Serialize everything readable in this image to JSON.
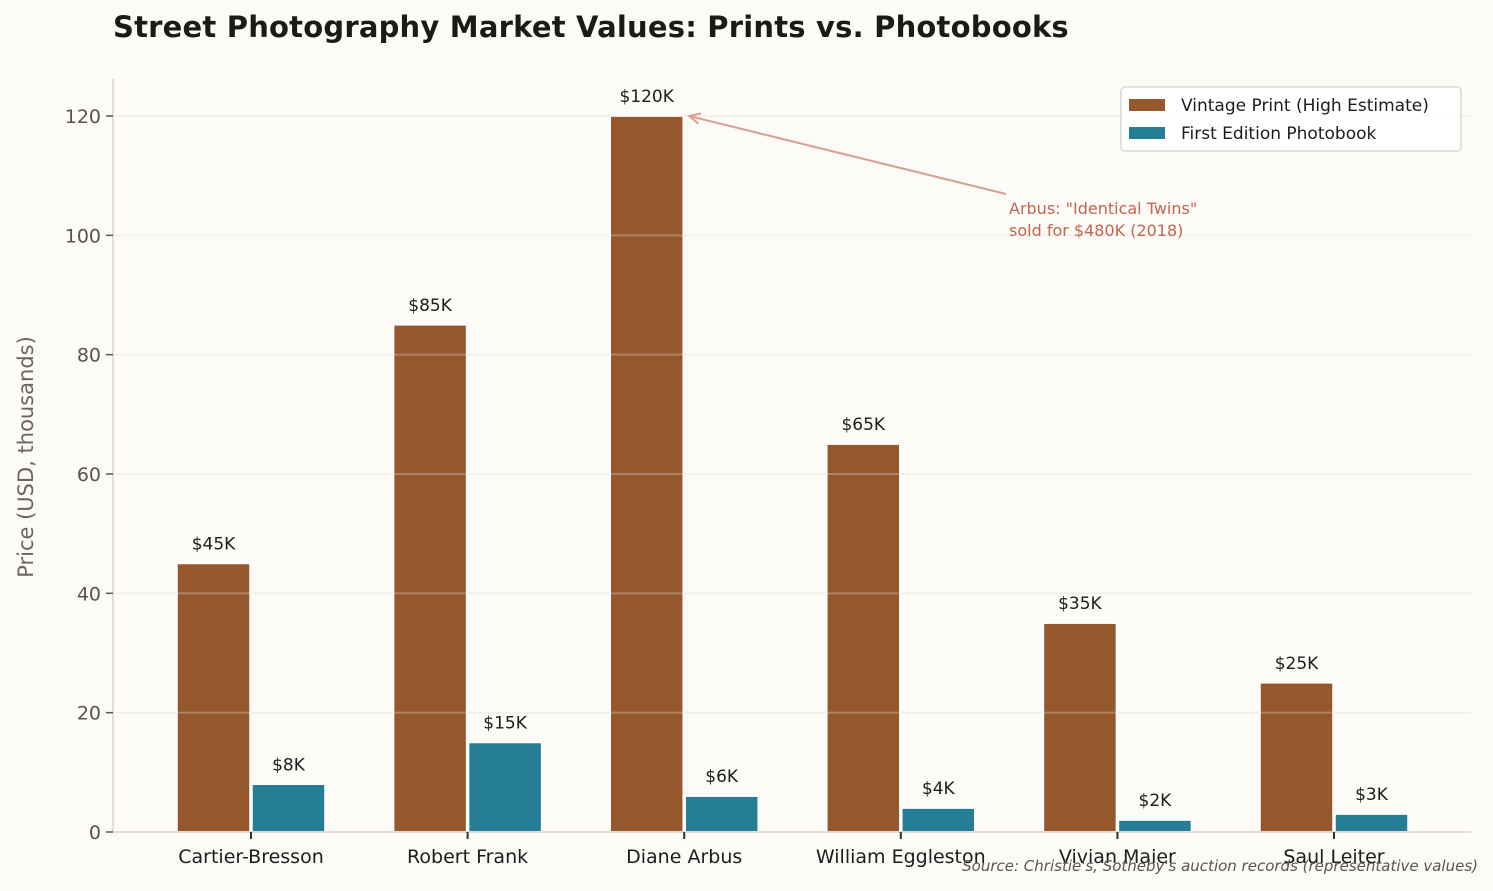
{
  "title": "Street Photography Market Values: Prints vs. Photobooks",
  "source_note": "Source: Christie's, Sotheby's auction records (representative values)",
  "colors": {
    "vintage": "#95572c",
    "photobook": "#267d96",
    "annotation": "#c4654d",
    "arrow": "#d9a08e",
    "grid": "#efebe5",
    "axis": "#e4ddd6",
    "background": "#fcfbf8"
  },
  "chart_data": {
    "type": "bar",
    "title": "Street Photography Market Values: Prints vs. Photobooks",
    "xlabel": "",
    "ylabel": "Price (USD, thousands)",
    "ylim": [
      0,
      126
    ],
    "yticks": [
      0,
      20,
      40,
      60,
      80,
      100,
      120
    ],
    "grid": "y",
    "legend_position": "upper right",
    "categories": [
      "Cartier-Bresson",
      "Robert Frank",
      "Diane Arbus",
      "William Eggleston",
      "Vivian Maier",
      "Saul Leiter"
    ],
    "series": [
      {
        "name": "Vintage Print (High Estimate)",
        "values": [
          45,
          85,
          120,
          65,
          35,
          25
        ],
        "labels": [
          "$45K",
          "$85K",
          "$120K",
          "$65K",
          "$35K",
          "$25K"
        ]
      },
      {
        "name": "First Edition Photobook",
        "values": [
          8,
          15,
          6,
          4,
          2,
          3
        ],
        "labels": [
          "$8K",
          "$15K",
          "$6K",
          "$4K",
          "$2K",
          "$3K"
        ]
      }
    ],
    "annotations": [
      {
        "text_lines": [
          "Arbus: \"Identical Twins\"",
          "sold for $480K (2018)"
        ],
        "points_to": {
          "category": "Diane Arbus",
          "value": 120
        }
      }
    ]
  }
}
